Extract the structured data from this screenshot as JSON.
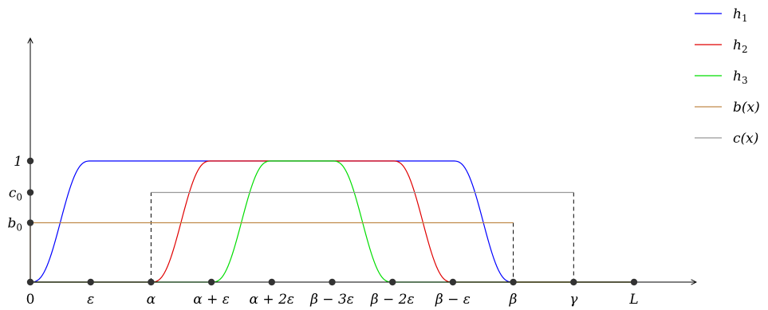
{
  "chart_data": {
    "type": "line",
    "title": "",
    "xlabel": "",
    "ylabel": "",
    "legend_position": "top-right",
    "x_ticks": [
      {
        "value": 0,
        "label": "0"
      },
      {
        "value": 1,
        "label": "ε"
      },
      {
        "value": 2,
        "label": "α"
      },
      {
        "value": 3,
        "label": "α + ε"
      },
      {
        "value": 4,
        "label": "α + 2ε"
      },
      {
        "value": 5,
        "label": "β − 3ε"
      },
      {
        "value": 6,
        "label": "β − 2ε"
      },
      {
        "value": 7,
        "label": "β − ε"
      },
      {
        "value": 8,
        "label": "β"
      },
      {
        "value": 9,
        "label": "γ"
      },
      {
        "value": 10,
        "label": "L"
      }
    ],
    "y_ticks": [
      {
        "value": 1.0,
        "label": "1"
      },
      {
        "value": 0.74,
        "label": "c0"
      },
      {
        "value": 0.49,
        "label": "b0"
      }
    ],
    "series": [
      {
        "name": "h1",
        "color": "#0000ff",
        "x": [
          0,
          0.25,
          0.5,
          0.75,
          1,
          7,
          7.25,
          7.5,
          7.75,
          8
        ],
        "y": [
          0,
          0.12,
          0.88,
          1.0,
          1.0,
          1.0,
          1.0,
          0.88,
          0.12,
          0.0
        ]
      },
      {
        "name": "h2",
        "color": "#e00000",
        "x": [
          0,
          2,
          2.25,
          2.5,
          2.75,
          3,
          6,
          6.25,
          6.5,
          6.75,
          7,
          10
        ],
        "y": [
          0,
          0,
          0.12,
          0.88,
          1.0,
          1.0,
          1.0,
          1.0,
          0.88,
          0.12,
          0,
          0
        ]
      },
      {
        "name": "h3",
        "color": "#00dd00",
        "x": [
          0,
          3,
          3.25,
          3.5,
          3.75,
          4,
          5,
          5.25,
          5.5,
          5.75,
          6,
          10
        ],
        "y": [
          0,
          0,
          0.12,
          0.88,
          1.0,
          1.0,
          1.0,
          1.0,
          0.88,
          0.12,
          0,
          0
        ]
      },
      {
        "name": "b(x)",
        "color": "#c08a4a",
        "x": [
          0,
          0,
          8,
          8,
          10
        ],
        "y": [
          0,
          0.49,
          0.49,
          0,
          0
        ]
      },
      {
        "name": "c(x)",
        "color": "#999999",
        "x": [
          0,
          2,
          2,
          9,
          9,
          10
        ],
        "y": [
          0,
          0,
          0.74,
          0.74,
          0,
          0
        ]
      }
    ],
    "legend": [
      {
        "base": "h",
        "sub": "1",
        "color": "#0000ff"
      },
      {
        "base": "h",
        "sub": "2",
        "color": "#e00000"
      },
      {
        "base": "h",
        "sub": "3",
        "color": "#00dd00"
      },
      {
        "base": "b(x)",
        "sub": "",
        "color": "#c08a4a"
      },
      {
        "base": "c(x)",
        "sub": "",
        "color": "#999999"
      }
    ]
  }
}
